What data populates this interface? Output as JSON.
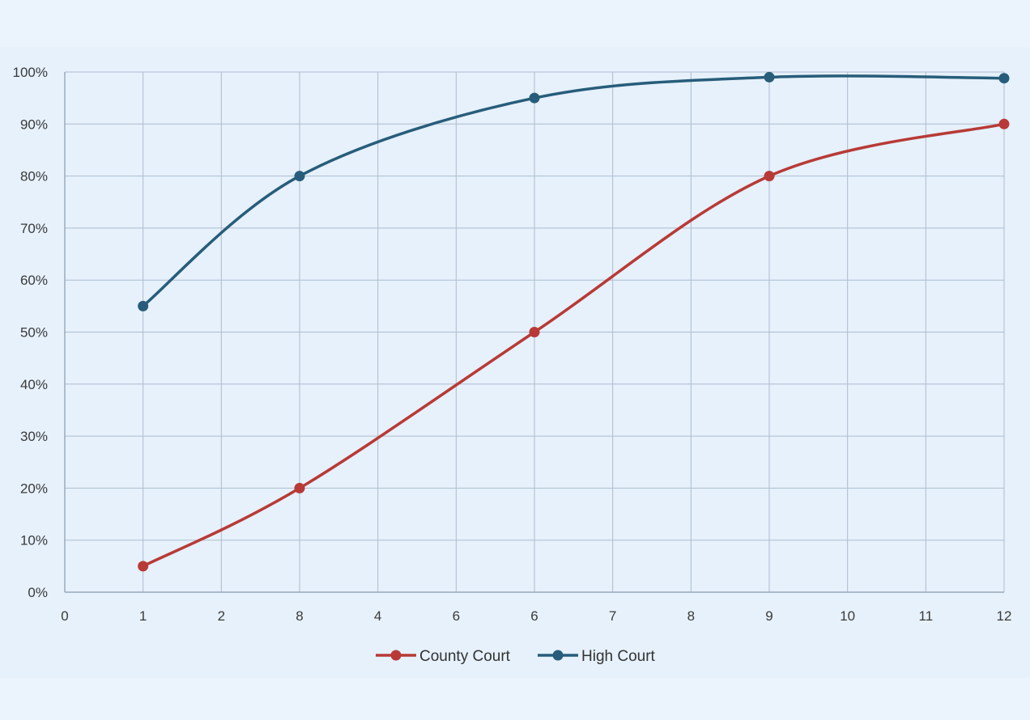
{
  "chart_data": {
    "type": "line",
    "title": "",
    "xlabel": "",
    "ylabel": "",
    "x_tick_labels": [
      "0",
      "1",
      "2",
      "8",
      "4",
      "6",
      "6",
      "7",
      "8",
      "9",
      "10",
      "11",
      "12"
    ],
    "y_tick_labels": [
      "0%",
      "10%",
      "20%",
      "30%",
      "40%",
      "50%",
      "60%",
      "70%",
      "80%",
      "90%",
      "100%"
    ],
    "ylim": [
      0,
      100
    ],
    "y_unit": "%",
    "grid": true,
    "legend_position": "bottom-center",
    "smooth": true,
    "series": [
      {
        "name": "County Court",
        "color": "#b83a36",
        "points": [
          {
            "x": "1",
            "y": 5
          },
          {
            "x": "8",
            "y": 20
          },
          {
            "x": "6",
            "y": 50
          },
          {
            "x": "9",
            "y": 80
          },
          {
            "x": "12",
            "y": 90
          }
        ],
        "point_tick_index": [
          1,
          3,
          6,
          9,
          12
        ]
      },
      {
        "name": "High Court",
        "color": "#275d7a",
        "points": [
          {
            "x": "1",
            "y": 55
          },
          {
            "x": "8",
            "y": 80
          },
          {
            "x": "6",
            "y": 95
          },
          {
            "x": "9",
            "y": 99
          },
          {
            "x": "12",
            "y": 98.8
          }
        ],
        "point_tick_index": [
          1,
          3,
          6,
          9,
          12
        ]
      }
    ]
  }
}
